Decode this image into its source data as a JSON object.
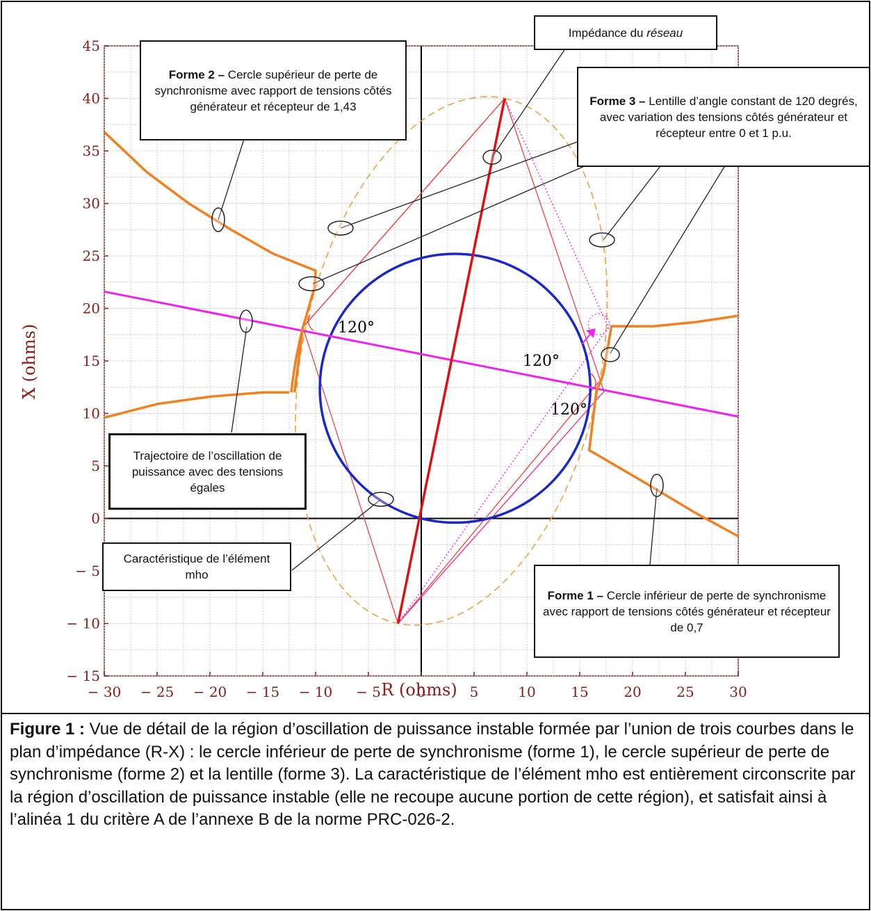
{
  "chart_data": {
    "type": "line",
    "xlabel": "R (ohms)",
    "ylabel": "X (ohms)",
    "xlim": [
      -30,
      30
    ],
    "ylim": [
      -15,
      45
    ],
    "x_ticks": [
      "− 30",
      "− 25",
      "− 20",
      "− 15",
      "− 10",
      "− 5",
      "0",
      "5",
      "10",
      "15",
      "20",
      "25",
      "30"
    ],
    "y_ticks": [
      "− 15",
      "− 10",
      "− 5",
      "0",
      "5",
      "10",
      "15",
      "20",
      "25",
      "30",
      "35",
      "40",
      "45"
    ],
    "grid": true,
    "angle_labels": [
      "120°",
      "120°",
      "120°"
    ],
    "mho": {
      "center": [
        3.2,
        12.4
      ],
      "radius": 12.8,
      "color": "#1b28c8"
    },
    "network_impedance": {
      "from": [
        -2.2,
        -10
      ],
      "to": [
        7.9,
        40
      ],
      "color": "#e01010"
    },
    "swing_trajectory": {
      "points": [
        [
          -30,
          21.6
        ],
        [
          30,
          9.7
        ]
      ],
      "color": "#ee22ee"
    },
    "lens_vertices": [
      [
        -2.2,
        -10
      ],
      [
        7.9,
        40
      ],
      [
        -11.2,
        18.2
      ],
      [
        17.3,
        12.1
      ]
    ],
    "lens_ellipse": {
      "color": "#f0a040"
    },
    "form1_curve": [
      [
        16.6,
        12.3
      ],
      [
        16.2,
        9.0
      ],
      [
        15.9,
        6.5
      ],
      [
        21,
        3.5
      ],
      [
        26,
        0.5
      ],
      [
        30,
        -1.7
      ]
    ],
    "form2_curve": [
      [
        -30,
        36.8
      ],
      [
        -26,
        33
      ],
      [
        -22,
        30
      ],
      [
        -18,
        27.5
      ],
      [
        -14,
        25.2
      ],
      [
        -10,
        23.6
      ],
      [
        -10.1,
        22
      ],
      [
        -11.2,
        18.2
      ],
      [
        -12,
        12
      ]
    ],
    "form_curve_left_lower": [
      [
        -30,
        9.6
      ],
      [
        -25,
        10.9
      ],
      [
        -20,
        11.6
      ],
      [
        -15,
        12.0
      ],
      [
        -12.5,
        12.0
      ]
    ],
    "form_curve_right_upper": [
      [
        17.4,
        14.8
      ],
      [
        18,
        18.3
      ],
      [
        22,
        18.3
      ],
      [
        26,
        18.7
      ],
      [
        30,
        19.3
      ]
    ],
    "orange_color": "#f08020"
  },
  "callouts": {
    "network": {
      "italic_prefix": "Impédance du ",
      "italic": "réseau"
    },
    "form2": {
      "bold": "Forme 2 –",
      "text": " Cercle supérieur de perte de synchronisme avec rapport de tensions côtés générateur et récepteur de 1,43"
    },
    "form3": {
      "bold": "Forme 3 –",
      "text": " Lentille d’angle constant de 120 degrés, avec variation des tensions côtés générateur et récepteur entre 0 et 1 p.u."
    },
    "trajectory": {
      "text": "Trajectoire de l’oscillation de puissance avec des tensions égales"
    },
    "mho": {
      "text": "Caractéristique de l’élément mho"
    },
    "form1": {
      "bold": "Forme 1 –",
      "text": " Cercle inférieur de perte de synchronisme avec rapport de tensions côtés générateur et récepteur de 0,7"
    }
  },
  "caption": {
    "bold": "Figure 1 :",
    "text": " Vue de détail de la région d’oscillation de puissance instable formée par l’union de trois courbes dans le plan d’impédance (R-X) : le cercle inférieur de perte de synchronisme (forme 1), le cercle supérieur de perte de synchronisme (forme 2) et la lentille (forme 3). La caractéristique de l’élément mho est entièrement circonscrite par la région d’oscillation de puissance instable (elle ne recoupe aucune portion de cette région), et satisfait ainsi à l’alinéa 1 du critère A de l’annexe B de la norme PRC-026-2."
  }
}
